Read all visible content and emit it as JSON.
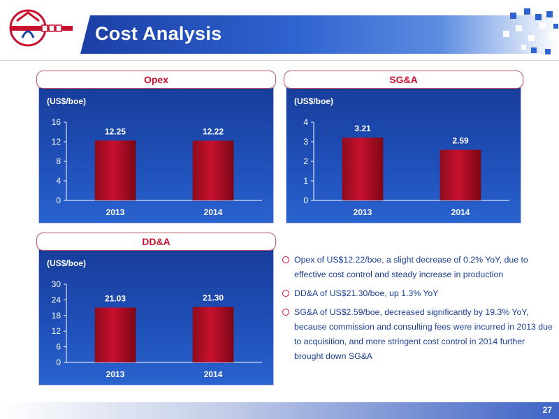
{
  "header": {
    "logo_icon": "company-logo-icon",
    "title": "Cost Analysis"
  },
  "chart_data": [
    {
      "id": "opex",
      "type": "bar",
      "title": "Opex",
      "ylabel": "(US$/boe)",
      "categories": [
        "2013",
        "2014"
      ],
      "values": [
        12.25,
        12.22
      ],
      "value_labels": [
        "12.25",
        "12.22"
      ],
      "ylim": [
        0,
        16
      ],
      "yticks": [
        0,
        4,
        8,
        12,
        16
      ],
      "bar_color": "#c8102e",
      "grid": false
    },
    {
      "id": "sga",
      "type": "bar",
      "title": "SG&A",
      "ylabel": "(US$/boe)",
      "categories": [
        "2013",
        "2014"
      ],
      "values": [
        3.21,
        2.59
      ],
      "value_labels": [
        "3.21",
        "2.59"
      ],
      "ylim": [
        0,
        4
      ],
      "yticks": [
        0,
        1,
        2,
        3,
        4
      ],
      "bar_color": "#c8102e",
      "grid": false
    },
    {
      "id": "dda",
      "type": "bar",
      "title": "DD&A",
      "ylabel": "(US$/boe)",
      "categories": [
        "2013",
        "2014"
      ],
      "values": [
        21.03,
        21.3
      ],
      "value_labels": [
        "21.03",
        "21.30"
      ],
      "ylim": [
        0,
        30
      ],
      "yticks": [
        0,
        6,
        12,
        18,
        24,
        30
      ],
      "bar_color": "#c8102e",
      "grid": false
    }
  ],
  "bullets": [
    "Opex of US$12.22/boe, a slight decrease of 0.2% YoY, due to effective cost control and steady increase in production",
    "DD&A of US$21.30/boe, up 1.3% YoY",
    "SG&A of US$2.59/boe, decreased significantly by 19.3% YoY, because commission and consulting fees were incurred in 2013 due to acquisition, and more stringent cost control in 2014 further brought down SG&A"
  ],
  "footer": {
    "page_number": "27"
  },
  "colors": {
    "accent_red": "#c8102e",
    "title_blue": "#1b3fa6",
    "text_blue": "#1a3f96"
  }
}
